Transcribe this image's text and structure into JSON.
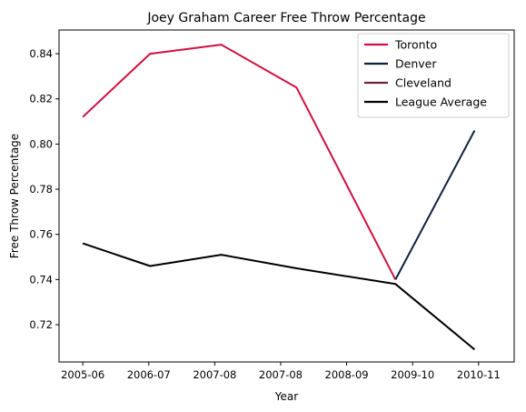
{
  "chart_data": {
    "type": "line",
    "title": "Joey Graham Career Free Throw Percentage",
    "xlabel": "Year",
    "ylabel": "Free Throw Percentage",
    "xlim": [
      2005.7,
      2011.45
    ],
    "ylim": [
      0.7035,
      0.8505
    ],
    "x_ticks": [
      {
        "value": 2006.0,
        "label": "2005-06"
      },
      {
        "value": 2007.0,
        "label": "2006-07"
      },
      {
        "value": 2008.0,
        "label": "2007-08"
      },
      {
        "value": 2009.0,
        "label": "2007-08"
      },
      {
        "value": 2010.0,
        "label": "2008-09"
      },
      {
        "value": 2011.0,
        "label": "2009-10"
      },
      {
        "value": 2012.0,
        "label": "2010-11"
      }
    ],
    "y_ticks": [
      0.72,
      0.74,
      0.76,
      0.78,
      0.8,
      0.82,
      0.84
    ],
    "grid": false,
    "legend_position": "top-right",
    "series": [
      {
        "name": "Toronto",
        "color": "#ce1141",
        "x": [
          2006.0,
          2006.85,
          2007.75,
          2008.7,
          2009.95
        ],
        "y": [
          0.812,
          0.84,
          0.844,
          0.825,
          0.74
        ]
      },
      {
        "name": "Denver",
        "color": "#0e2240",
        "x": [
          2009.95,
          2010.95
        ],
        "y": [
          0.74,
          0.806
        ]
      },
      {
        "name": "Cleveland",
        "color": "#6f263d",
        "x": [],
        "y": []
      },
      {
        "name": "League Average",
        "color": "#000000",
        "x": [
          2006.0,
          2006.85,
          2007.75,
          2008.7,
          2009.95,
          2010.95
        ],
        "y": [
          0.756,
          0.746,
          0.751,
          0.745,
          0.738,
          0.709
        ]
      }
    ]
  }
}
